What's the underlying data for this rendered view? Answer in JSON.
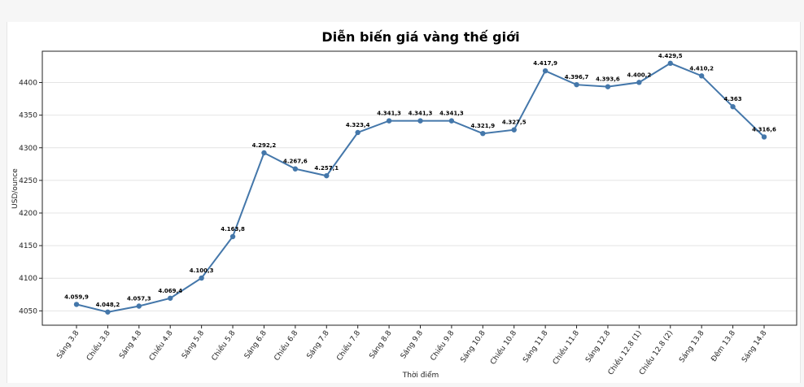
{
  "chart_data": {
    "type": "line",
    "title": "Diễn biến giá vàng thế giới",
    "xlabel": "Thời điểm",
    "ylabel": "USD/ounce",
    "ylim": [
      4028,
      4448
    ],
    "yticks": [
      4050,
      4100,
      4150,
      4200,
      4250,
      4300,
      4350,
      4400
    ],
    "grid": "horizontal",
    "color": "#4477aa",
    "categories": [
      "Sáng 3.8",
      "Chiều 3.8",
      "Sáng 4.8",
      "Chiều 4.8",
      "Sáng 5.8",
      "Chiều 5.8",
      "Sáng 6.8",
      "Chiều 6.8",
      "Sáng 7.8",
      "Chiều 7.8",
      "Sáng 8.8",
      "Sáng 9.8",
      "Chiều 9.8",
      "Sáng 10.8",
      "Chiều 10.8",
      "Sáng 11.8",
      "Chiều 11.8",
      "Sáng 12.8",
      "Chiều 12.8 (1)",
      "Chiều 12.8 (2)",
      "Sáng 13.8",
      "Đêm 13.8",
      "Sáng 14.8"
    ],
    "values": [
      4059.9,
      4048.2,
      4057.3,
      4069.4,
      4100.3,
      4163.8,
      4292.2,
      4267.6,
      4257.1,
      4323.4,
      4341.3,
      4341.3,
      4341.3,
      4321.9,
      4327.5,
      4417.9,
      4396.7,
      4393.6,
      4400.2,
      4429.5,
      4410.2,
      4363,
      4316.6
    ],
    "labels": [
      "4.059,9",
      "4.048,2",
      "4.057,3",
      "4.069,4",
      "4.100,3",
      "4.163,8",
      "4.292,2",
      "4.267,6",
      "4.257,1",
      "4.323,4",
      "4.341,3",
      "4.341,3",
      "4.341,3",
      "4.321,9",
      "4.327,5",
      "4.417,9",
      "4.396,7",
      "4.393,6",
      "4.400,2",
      "4.429,5",
      "4.410,2",
      "4.363",
      "4.316,6"
    ]
  }
}
